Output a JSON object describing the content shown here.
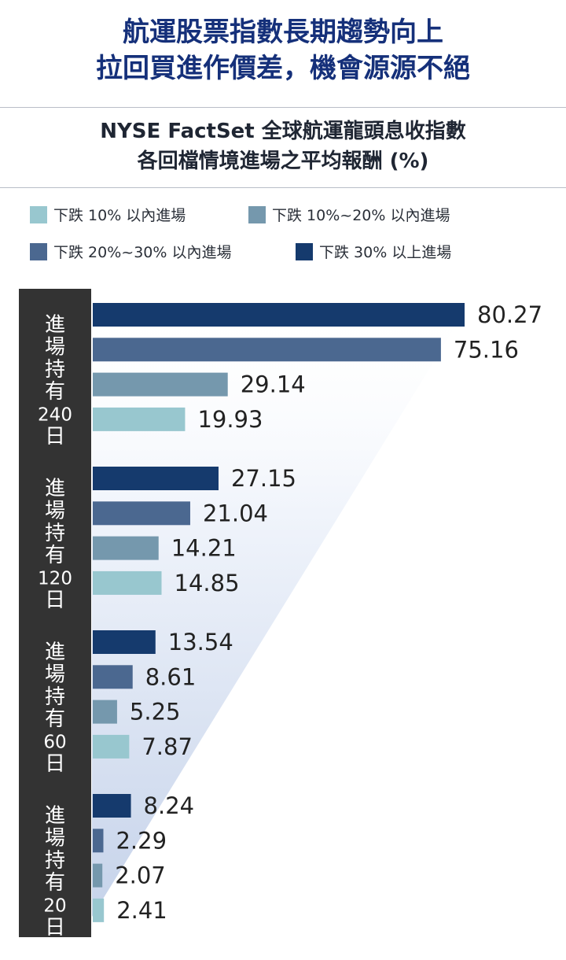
{
  "headline": {
    "line1": "航運股票指數長期趨勢向上",
    "line2": "拉回買進作價差，機會源源不絕"
  },
  "subtitle": {
    "line1": "NYSE FactSet 全球航運龍頭息收指數",
    "line2": "各回檔情境進場之平均報酬 (%)"
  },
  "colors": {
    "headline": "#15307a",
    "axis_panel": "#333333",
    "series": [
      "#98c7cf",
      "#7598ad",
      "#4b6890",
      "#153a6d"
    ]
  },
  "chart_data": {
    "type": "bar",
    "orientation": "horizontal",
    "title": "NYSE FactSet 全球航運龍頭息收指數 各回檔情境進場之平均報酬 (%)",
    "xlim": [
      0,
      80.27
    ],
    "grid": false,
    "legend_position": "top",
    "series_names": [
      "下跌 10% 以內進場",
      "下跌 10%~20% 以內進場",
      "下跌 20%~30% 以內進場",
      "下跌 30% 以上進場"
    ],
    "groups": [
      {
        "label": [
          "進",
          "場",
          "持",
          "有",
          "240",
          "日"
        ],
        "bars": [
          {
            "series": 3,
            "value": 80.27,
            "label": "80.27"
          },
          {
            "series": 2,
            "value": 75.16,
            "label": "75.16"
          },
          {
            "series": 1,
            "value": 29.14,
            "label": "29.14"
          },
          {
            "series": 0,
            "value": 19.93,
            "label": "19.93"
          }
        ]
      },
      {
        "label": [
          "進",
          "場",
          "持",
          "有",
          "120",
          "日"
        ],
        "bars": [
          {
            "series": 3,
            "value": 27.15,
            "label": "27.15"
          },
          {
            "series": 2,
            "value": 21.04,
            "label": "21.04"
          },
          {
            "series": 1,
            "value": 14.21,
            "label": "14.21"
          },
          {
            "series": 0,
            "value": 14.85,
            "label": "14.85"
          }
        ]
      },
      {
        "label": [
          "進",
          "場",
          "持",
          "有",
          "60",
          "日"
        ],
        "bars": [
          {
            "series": 3,
            "value": 13.54,
            "label": "13.54"
          },
          {
            "series": 2,
            "value": 8.61,
            "label": "8.61"
          },
          {
            "series": 1,
            "value": 5.25,
            "label": "5.25"
          },
          {
            "series": 0,
            "value": 7.87,
            "label": "7.87"
          }
        ]
      },
      {
        "label": [
          "進",
          "場",
          "持",
          "有",
          "20",
          "日"
        ],
        "bars": [
          {
            "series": 3,
            "value": 8.24,
            "label": "8.24"
          },
          {
            "series": 2,
            "value": 2.29,
            "label": "2.29"
          },
          {
            "series": 1,
            "value": 2.07,
            "label": "2.07"
          },
          {
            "series": 0,
            "value": 2.41,
            "label": "2.41"
          }
        ]
      }
    ]
  }
}
